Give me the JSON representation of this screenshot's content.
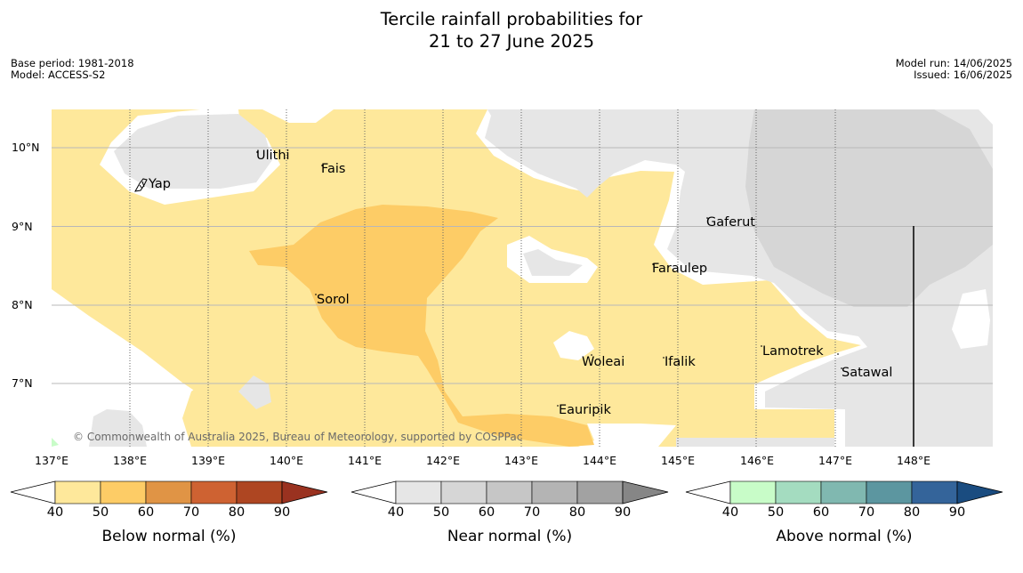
{
  "title": {
    "line1": "Tercile rainfall probabilities for",
    "line2": "21 to 27 June 2025"
  },
  "meta_left": {
    "base_period": "Base period: 1981-2018",
    "model": "Model: ACCESS-S2"
  },
  "meta_right": {
    "model_run": "Model run: 14/06/2025",
    "issued": "Issued: 16/06/2025"
  },
  "map": {
    "lat_labels": [
      "10°N",
      "9°N",
      "8°N",
      "7°N"
    ],
    "lon_labels": [
      "137°E",
      "138°E",
      "139°E",
      "140°E",
      "141°E",
      "142°E",
      "143°E",
      "144°E",
      "145°E",
      "146°E",
      "147°E",
      "148°E"
    ],
    "places": [
      "Yap",
      "Ulithi",
      "Fais",
      "Gaferut",
      "Faraulep",
      "Sorol",
      "Lamotrek",
      "Woleai",
      "Ifalik",
      "Satawal",
      "Eauripik"
    ],
    "copyright": "© Commonwealth of Australia 2025, Bureau of Meteorology, supported by COSPPac",
    "colors": {
      "below_40_50": "#fee89b",
      "below_50_60": "#fdcc66",
      "near_40_50": "#e6e6e6",
      "near_50_60": "#d6d6d6",
      "above_40_50": "#c8fcc8"
    }
  },
  "legend": {
    "ticks": [
      "40",
      "50",
      "60",
      "70",
      "80",
      "90"
    ],
    "bars": [
      {
        "title": "Below normal (%)",
        "colors": [
          "#fee89b",
          "#fdcc66",
          "#e09445",
          "#ce6232",
          "#ae4622",
          "#9a3220"
        ]
      },
      {
        "title": "Near normal (%)",
        "colors": [
          "#e6e6e6",
          "#d6d6d6",
          "#c6c6c6",
          "#b4b4b4",
          "#a2a2a2",
          "#868686"
        ]
      },
      {
        "title": "Above normal (%)",
        "colors": [
          "#c8fcc8",
          "#a4dcc0",
          "#80b8b0",
          "#5c96a0",
          "#34649a",
          "#1a4c80"
        ]
      }
    ]
  }
}
